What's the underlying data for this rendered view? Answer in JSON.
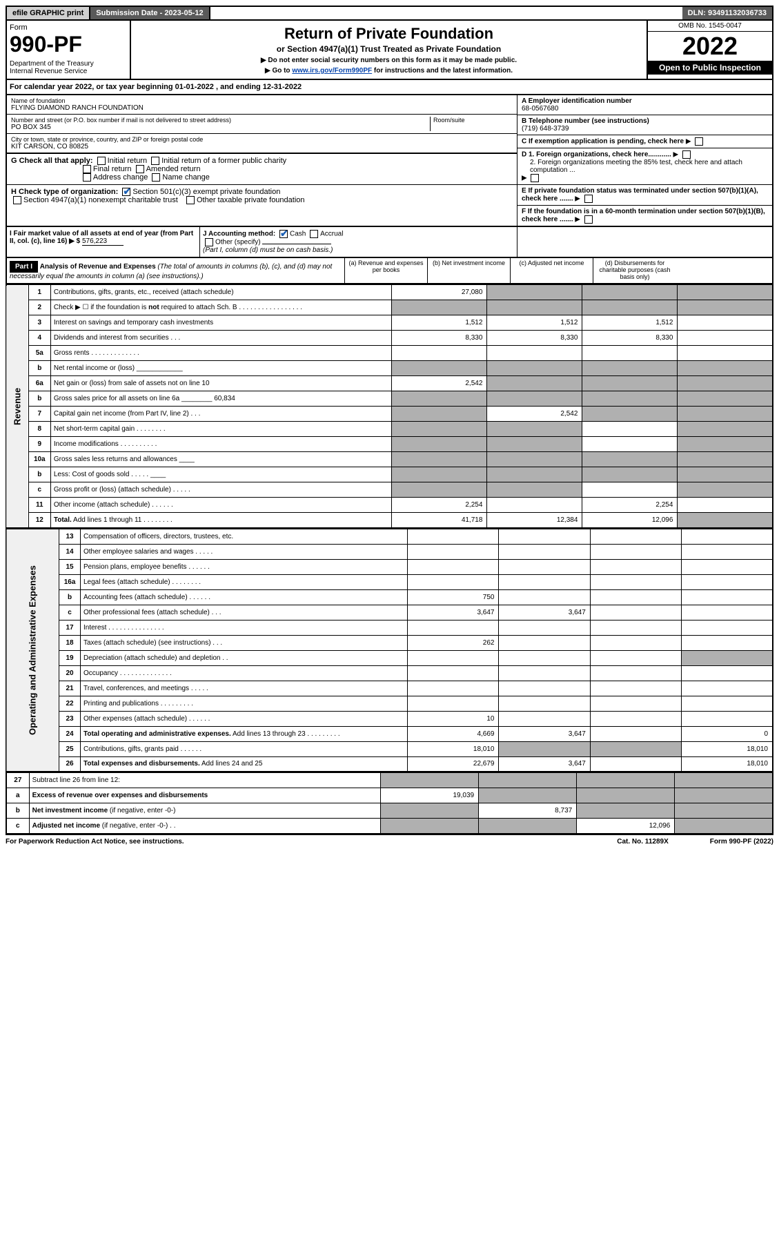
{
  "topbar": {
    "efile": "efile GRAPHIC print",
    "sub_label": "Submission Date - 2023-05-12",
    "dln": "DLN: 93491132036733"
  },
  "header": {
    "form_word": "Form",
    "form_no": "990-PF",
    "dept": "Department of the Treasury",
    "irs": "Internal Revenue Service",
    "title": "Return of Private Foundation",
    "subtitle": "or Section 4947(a)(1) Trust Treated as Private Foundation",
    "note1": "▶ Do not enter social security numbers on this form as it may be made public.",
    "note2_pre": "▶ Go to ",
    "note2_link": "www.irs.gov/Form990PF",
    "note2_post": " for instructions and the latest information.",
    "omb": "OMB No. 1545-0047",
    "year": "2022",
    "inspect": "Open to Public Inspection"
  },
  "cal": "For calendar year 2022, or tax year beginning 01-01-2022          , and ending 12-31-2022",
  "ident": {
    "name_lbl": "Name of foundation",
    "name": "FLYING DIAMOND RANCH FOUNDATION",
    "addr_lbl": "Number and street (or P.O. box number if mail is not delivered to street address)",
    "addr": "PO BOX 345",
    "room_lbl": "Room/suite",
    "city_lbl": "City or town, state or province, country, and ZIP or foreign postal code",
    "city": "KIT CARSON, CO  80825",
    "a_lbl": "A Employer identification number",
    "ein": "68-0567680",
    "b_lbl": "B Telephone number (see instructions)",
    "phone": "(719) 648-3739",
    "c_lbl": "C If exemption application is pending, check here",
    "d1": "D 1. Foreign organizations, check here............",
    "d2": "2. Foreign organizations meeting the 85% test, check here and attach computation ...",
    "e": "E If private foundation status was terminated under section 507(b)(1)(A), check here .......",
    "f": "F If the foundation is in a 60-month termination under section 507(b)(1)(B), check here ......."
  },
  "g": {
    "label": "G Check all that apply:",
    "opts": [
      "Initial return",
      "Initial return of a former public charity",
      "Final return",
      "Amended return",
      "Address change",
      "Name change"
    ]
  },
  "h": {
    "label": "H Check type of organization:",
    "o1": "Section 501(c)(3) exempt private foundation",
    "o2": "Section 4947(a)(1) nonexempt charitable trust",
    "o3": "Other taxable private foundation"
  },
  "i": {
    "label": "I Fair market value of all assets at end of year (from Part II, col. (c), line 16) ▶ $",
    "val": "576,223"
  },
  "j": {
    "label": "J Accounting method:",
    "cash": "Cash",
    "accrual": "Accrual",
    "other": "Other (specify)",
    "note": "(Part I, column (d) must be on cash basis.)"
  },
  "part1": {
    "hdr": "Part I",
    "title": "Analysis of Revenue and Expenses",
    "title_note": "(The total of amounts in columns (b), (c), and (d) may not necessarily equal the amounts in column (a) (see instructions).)",
    "col_a": "(a)   Revenue and expenses per books",
    "col_b": "(b)   Net investment income",
    "col_c": "(c)   Adjusted net income",
    "col_d": "(d)   Disbursements for charitable purposes (cash basis only)"
  },
  "side": {
    "rev": "Revenue",
    "oae": "Operating and Administrative Expenses"
  },
  "rows": [
    {
      "n": "1",
      "d": "",
      "a": "27,080",
      "b": "",
      "c": "",
      "as": 1,
      "bs": 0,
      "cs": 0,
      "ds": 0
    },
    {
      "n": "2",
      "d": "",
      "a": "",
      "b": "",
      "c": "",
      "as": 1,
      "bs": 1,
      "cs": 1,
      "ds": 1
    },
    {
      "n": "3",
      "d": "",
      "a": "1,512",
      "b": "1,512",
      "c": "1,512"
    },
    {
      "n": "4",
      "d": "",
      "a": "8,330",
      "b": "8,330",
      "c": "8,330"
    },
    {
      "n": "5a",
      "d": "",
      "a": "",
      "b": "",
      "c": ""
    },
    {
      "n": "b",
      "d": "",
      "a": "",
      "b": "",
      "c": "",
      "as": 1,
      "bs": 1,
      "cs": 1,
      "ds": 1
    },
    {
      "n": "6a",
      "d": "",
      "a": "2,542",
      "b": "",
      "c": "",
      "bs": 1,
      "cs": 1,
      "ds": 1
    },
    {
      "n": "b",
      "d": "",
      "a": "",
      "b": "",
      "c": "",
      "as": 1,
      "bs": 1,
      "cs": 1,
      "ds": 1
    },
    {
      "n": "7",
      "d": "",
      "a": "",
      "b": "2,542",
      "c": "",
      "as": 1,
      "cs": 1,
      "ds": 1
    },
    {
      "n": "8",
      "d": "",
      "a": "",
      "b": "",
      "c": "",
      "as": 1,
      "bs": 1,
      "ds": 1
    },
    {
      "n": "9",
      "d": "",
      "a": "",
      "b": "",
      "c": "",
      "as": 1,
      "bs": 1,
      "ds": 1
    },
    {
      "n": "10a",
      "d": "",
      "a": "",
      "b": "",
      "c": "",
      "as": 1,
      "bs": 1,
      "cs": 1,
      "ds": 1
    },
    {
      "n": "b",
      "d": "",
      "a": "",
      "b": "",
      "c": "",
      "as": 1,
      "bs": 1,
      "cs": 1,
      "ds": 1
    },
    {
      "n": "c",
      "d": "",
      "a": "",
      "b": "",
      "c": "",
      "as": 1,
      "bs": 1,
      "ds": 1
    },
    {
      "n": "11",
      "d": "",
      "a": "2,254",
      "b": "",
      "c": "2,254"
    },
    {
      "n": "12",
      "d": "",
      "a": "41,718",
      "b": "12,384",
      "c": "12,096",
      "bold": 1,
      "ds": 1
    }
  ],
  "exp_rows": [
    {
      "n": "13",
      "d": "",
      "a": "",
      "b": "",
      "c": ""
    },
    {
      "n": "14",
      "d": "",
      "a": "",
      "b": "",
      "c": ""
    },
    {
      "n": "15",
      "d": "",
      "a": "",
      "b": "",
      "c": ""
    },
    {
      "n": "16a",
      "d": "",
      "a": "",
      "b": "",
      "c": ""
    },
    {
      "n": "b",
      "d": "",
      "a": "750",
      "b": "",
      "c": ""
    },
    {
      "n": "c",
      "d": "",
      "a": "3,647",
      "b": "3,647",
      "c": ""
    },
    {
      "n": "17",
      "d": "",
      "a": "",
      "b": "",
      "c": ""
    },
    {
      "n": "18",
      "d": "",
      "a": "262",
      "b": "",
      "c": ""
    },
    {
      "n": "19",
      "d": "",
      "a": "",
      "b": "",
      "c": "",
      "ds": 1
    },
    {
      "n": "20",
      "d": "",
      "a": "",
      "b": "",
      "c": ""
    },
    {
      "n": "21",
      "d": "",
      "a": "",
      "b": "",
      "c": ""
    },
    {
      "n": "22",
      "d": "",
      "a": "",
      "b": "",
      "c": ""
    },
    {
      "n": "23",
      "d": "",
      "a": "10",
      "b": "",
      "c": ""
    },
    {
      "n": "24",
      "d": "0",
      "a": "4,669",
      "b": "3,647",
      "c": "",
      "bold": 1
    },
    {
      "n": "25",
      "d": "18,010",
      "a": "18,010",
      "b": "",
      "c": "",
      "bs": 1,
      "cs": 1
    },
    {
      "n": "26",
      "d": "18,010",
      "a": "22,679",
      "b": "3,647",
      "c": "",
      "bold": 1
    }
  ],
  "net_rows": [
    {
      "n": "27",
      "d": "",
      "a": "",
      "b": "",
      "c": "",
      "as": 1,
      "bs": 1,
      "cs": 1,
      "ds": 1
    },
    {
      "n": "a",
      "d": "",
      "a": "19,039",
      "b": "",
      "c": "",
      "bold": 1,
      "bs": 1,
      "cs": 1,
      "ds": 1
    },
    {
      "n": "b",
      "d": "",
      "a": "",
      "b": "8,737",
      "c": "",
      "bold": 1,
      "as": 1,
      "cs": 1,
      "ds": 1
    },
    {
      "n": "c",
      "d": "",
      "a": "",
      "b": "",
      "c": "12,096",
      "bold": 1,
      "as": 1,
      "bs": 1,
      "ds": 1
    }
  ],
  "foot": {
    "l": "For Paperwork Reduction Act Notice, see instructions.",
    "m": "Cat. No. 11289X",
    "r": "Form 990-PF (2022)"
  }
}
